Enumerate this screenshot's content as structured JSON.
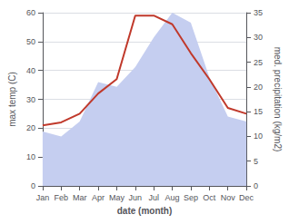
{
  "chart_data": {
    "type": "line",
    "xlabel": "date (month)",
    "ylabel": "max temp (C)",
    "y2label": "med. precipitation (kg/m2)",
    "categories": [
      "Jan",
      "Feb",
      "Mar",
      "Apr",
      "May",
      "Jun",
      "Jul",
      "Aug",
      "Sep",
      "Oct",
      "Nov",
      "Dec"
    ],
    "series": [
      {
        "type": "area",
        "axis": "y2",
        "color": "#c5cef0",
        "values": [
          11,
          10,
          13,
          21,
          20,
          24,
          30,
          35,
          33,
          22,
          14,
          13
        ]
      },
      {
        "type": "line",
        "color": "#c0392b",
        "values": [
          21,
          22,
          25,
          32,
          37,
          59,
          59,
          56,
          46,
          37,
          27,
          25
        ]
      }
    ],
    "ylim": [
      0,
      60
    ],
    "yticks": [
      0,
      10,
      20,
      30,
      40,
      50,
      60
    ],
    "y2lim": [
      0,
      35
    ],
    "y2ticks": [
      0,
      5,
      10,
      15,
      20,
      25,
      30,
      35
    ],
    "grid": true
  }
}
